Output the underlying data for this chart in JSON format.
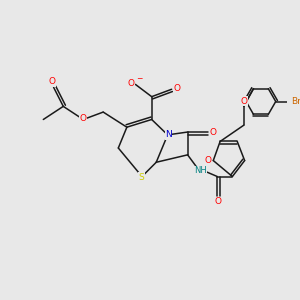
{
  "bg_color": "#e8e8e8",
  "bond_color": "#1a1a1a",
  "atom_colors": {
    "O": "#ff0000",
    "N": "#0000cc",
    "S": "#cccc00",
    "Br": "#cc6600",
    "NH": "#008080"
  },
  "font_size_atoms": 6.5,
  "line_width": 1.1
}
